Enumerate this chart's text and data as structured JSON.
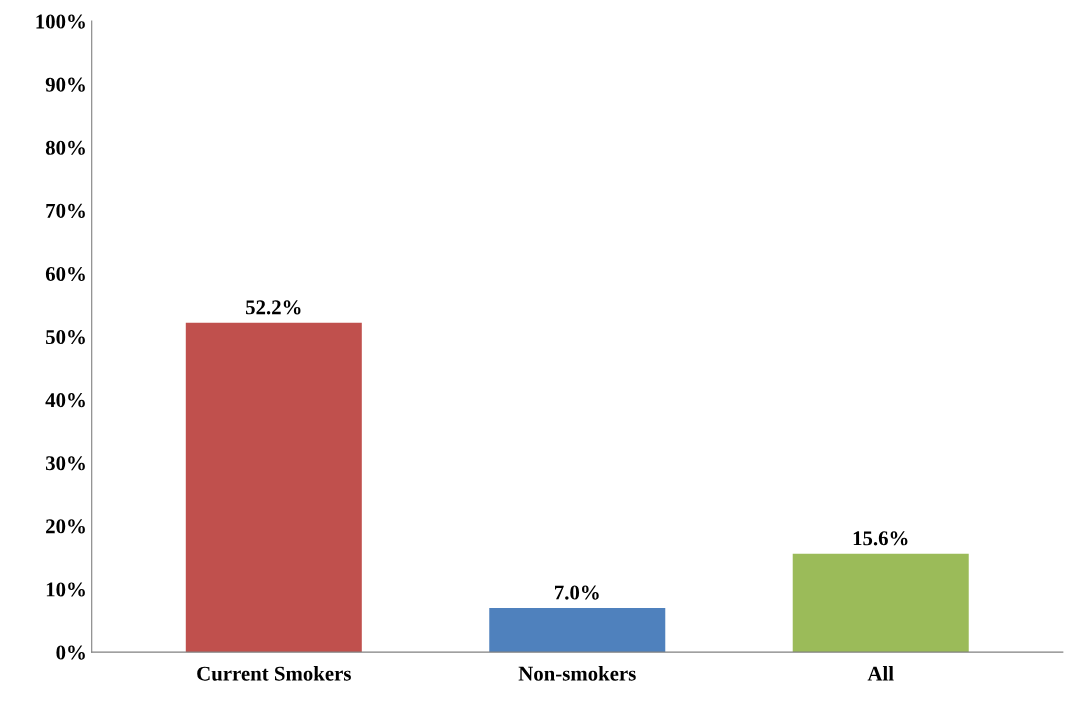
{
  "chart_data": {
    "type": "bar",
    "categories": [
      "Current Smokers",
      "Non-smokers",
      "All"
    ],
    "values": [
      52.2,
      7.0,
      15.6
    ],
    "colors": [
      "#c0504d",
      "#4f81bd",
      "#9bbb59"
    ],
    "value_labels": [
      "52.2%",
      "7.0%",
      "15.6%"
    ],
    "ylim": [
      0,
      100
    ],
    "yticks": [
      {
        "value": 0,
        "label": "0%"
      },
      {
        "value": 10,
        "label": "10%"
      },
      {
        "value": 20,
        "label": "20%"
      },
      {
        "value": 30,
        "label": "30%"
      },
      {
        "value": 40,
        "label": "40%"
      },
      {
        "value": 50,
        "label": "50%"
      },
      {
        "value": 60,
        "label": "60%"
      },
      {
        "value": 70,
        "label": "70%"
      },
      {
        "value": 80,
        "label": "80%"
      },
      {
        "value": 90,
        "label": "90%"
      },
      {
        "value": 100,
        "label": "100%"
      }
    ],
    "grid": false,
    "legend": false
  }
}
